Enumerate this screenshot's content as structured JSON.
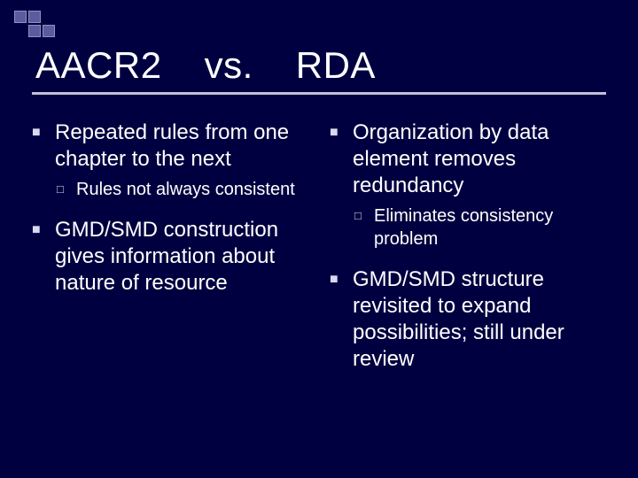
{
  "colors": {
    "background": "#000040",
    "text": "#ffffff",
    "underline": "#c0c0d8",
    "bullet_marker": "#d8d8f0",
    "deco_square_fill": "#5b5ba0",
    "deco_square_border": "#9090c0"
  },
  "typography": {
    "title_fontsize": 42,
    "l1_fontsize": 24,
    "l2_fontsize": 20,
    "font_family": "Arial"
  },
  "title": {
    "part1": "AACR2",
    "part2": "vs.",
    "part3": "RDA"
  },
  "left": {
    "items": [
      {
        "text": "Repeated rules from one chapter to the next",
        "sub": [
          {
            "text": "Rules not always consistent"
          }
        ]
      },
      {
        "text": "GMD/SMD construction gives information about nature of resource",
        "sub": []
      }
    ]
  },
  "right": {
    "items": [
      {
        "text": "Organization by data element removes redundancy",
        "sub": [
          {
            "text": "Eliminates consistency problem"
          }
        ]
      },
      {
        "text": "GMD/SMD structure revisited to expand possibilities; still under review",
        "sub": []
      }
    ]
  }
}
